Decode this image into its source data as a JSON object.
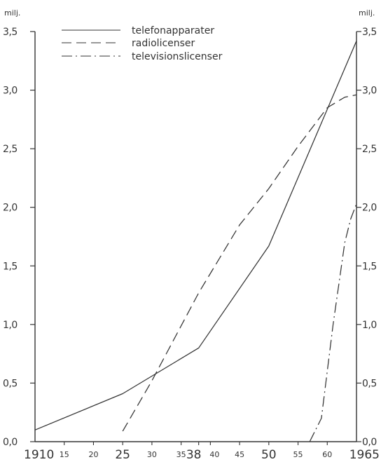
{
  "chart_data": {
    "type": "line",
    "unit_left": "milj.",
    "unit_right": "milj.",
    "xlim": [
      1910,
      1965
    ],
    "ylim": [
      0,
      3.5
    ],
    "y_ticks": [
      {
        "value": 0.0,
        "left": "0,0",
        "right": "0,0"
      },
      {
        "value": 0.5,
        "left": "0,5",
        "right": "0,5"
      },
      {
        "value": 1.0,
        "left": "1,0",
        "right": "1,0"
      },
      {
        "value": 1.5,
        "left": "1,5",
        "right": "1,5"
      },
      {
        "value": 2.0,
        "left": "2,0",
        "right": "2,0"
      },
      {
        "value": 2.5,
        "left": "2,5",
        "right": "2,5"
      },
      {
        "value": 3.0,
        "left": "3,0",
        "right": "3,0"
      },
      {
        "value": 3.5,
        "left": "3,5",
        "right": "3,5"
      }
    ],
    "x_ticks": [
      {
        "value": 1910,
        "label": "1910",
        "size": "major"
      },
      {
        "value": 1915,
        "label": "15",
        "size": "minor"
      },
      {
        "value": 1920,
        "label": "20",
        "size": "minor"
      },
      {
        "value": 1925,
        "label": "25",
        "size": "major"
      },
      {
        "value": 1930,
        "label": "30",
        "size": "minor"
      },
      {
        "value": 1935,
        "label": "35",
        "size": "minor"
      },
      {
        "value": 1938,
        "label": "38",
        "size": "major"
      },
      {
        "value": 1940,
        "label": "40",
        "size": "minor"
      },
      {
        "value": 1945,
        "label": "45",
        "size": "minor"
      },
      {
        "value": 1950,
        "label": "50",
        "size": "major"
      },
      {
        "value": 1955,
        "label": "55",
        "size": "minor"
      },
      {
        "value": 1960,
        "label": "60",
        "size": "minor"
      },
      {
        "value": 1965,
        "label": "1965",
        "size": "major"
      }
    ],
    "series": [
      {
        "name": "telefonapparater",
        "dash": "solid",
        "x": [
          1910,
          1925,
          1938,
          1950,
          1965
        ],
        "y": [
          0.1,
          0.41,
          0.8,
          1.67,
          3.42
        ]
      },
      {
        "name": "radiolicenser",
        "dash": "dashed",
        "x": [
          1925,
          1930,
          1938,
          1945,
          1950,
          1955,
          1960,
          1963,
          1965
        ],
        "y": [
          0.09,
          0.52,
          1.27,
          1.85,
          2.16,
          2.52,
          2.85,
          2.94,
          2.96
        ]
      },
      {
        "name": "televisionslicenser",
        "dash": "dashdot",
        "x": [
          1957,
          1959,
          1961,
          1963,
          1964,
          1965
        ],
        "y": [
          0.0,
          0.2,
          1.0,
          1.7,
          1.9,
          2.03
        ]
      }
    ],
    "legend_position": "top-left",
    "grid": false
  }
}
